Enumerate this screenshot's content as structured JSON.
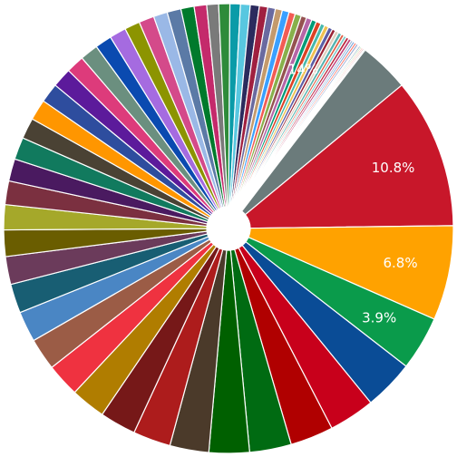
{
  "chart_data": {
    "type": "pie",
    "donut_hole": true,
    "start_angle_deg": 0,
    "direction": "clockwise",
    "slices": [
      {
        "value": 14.0,
        "label": "14%",
        "color": "#6b7b7b"
      },
      {
        "value": 10.8,
        "label": "10.8%",
        "color": "#c8172a"
      },
      {
        "value": 6.8,
        "label": "6.8%",
        "color": "#ffa200"
      },
      {
        "value": 3.9,
        "label": "3.9%",
        "color": "#0a9b4b"
      },
      {
        "value": 3.6,
        "label": "",
        "color": "#0a4c96"
      },
      {
        "value": 3.3,
        "label": "",
        "color": "#c8001b"
      },
      {
        "value": 3.1,
        "label": "",
        "color": "#b00000"
      },
      {
        "value": 3.0,
        "label": "",
        "color": "#006b12"
      },
      {
        "value": 2.9,
        "label": "",
        "color": "#006000"
      },
      {
        "value": 2.8,
        "label": "",
        "color": "#4b3a2a"
      },
      {
        "value": 2.7,
        "label": "",
        "color": "#ad1c1c"
      },
      {
        "value": 2.6,
        "label": "",
        "color": "#761818"
      },
      {
        "value": 2.5,
        "label": "",
        "color": "#b07d00"
      },
      {
        "value": 2.4,
        "label": "",
        "color": "#ef3240"
      },
      {
        "value": 2.3,
        "label": "",
        "color": "#9b5c46"
      },
      {
        "value": 2.2,
        "label": "",
        "color": "#4a86c4"
      },
      {
        "value": 2.1,
        "label": "",
        "color": "#185e73"
      },
      {
        "value": 2.0,
        "label": "",
        "color": "#6b3b5b"
      },
      {
        "value": 1.9,
        "label": "",
        "color": "#6a5d00"
      },
      {
        "value": 1.8,
        "label": "",
        "color": "#a5a82a"
      },
      {
        "value": 1.7,
        "label": "",
        "color": "#7b3040"
      },
      {
        "value": 1.6,
        "label": "",
        "color": "#4a1a60"
      },
      {
        "value": 1.6,
        "label": "",
        "color": "#117a5e"
      },
      {
        "value": 1.5,
        "label": "",
        "color": "#4a4234"
      },
      {
        "value": 1.5,
        "label": "",
        "color": "#ff9600"
      },
      {
        "value": 1.4,
        "label": "",
        "color": "#2e4d9e"
      },
      {
        "value": 1.4,
        "label": "",
        "color": "#5c1a9b"
      },
      {
        "value": 1.3,
        "label": "",
        "color": "#dd3b7b"
      },
      {
        "value": 1.3,
        "label": "",
        "color": "#6b8f7f"
      },
      {
        "value": 1.2,
        "label": "",
        "color": "#0a4ab0"
      },
      {
        "value": 1.2,
        "label": "",
        "color": "#a56be0"
      },
      {
        "value": 1.1,
        "label": "",
        "color": "#8c9400"
      },
      {
        "value": 1.1,
        "label": "",
        "color": "#d44a8a"
      },
      {
        "value": 1.0,
        "label": "",
        "color": "#9ab8e6"
      },
      {
        "value": 1.0,
        "label": "",
        "color": "#5b7aa6"
      },
      {
        "value": 0.95,
        "label": "",
        "color": "#007a2c"
      },
      {
        "value": 0.9,
        "label": "",
        "color": "#c42a6b"
      },
      {
        "value": 0.85,
        "label": "",
        "color": "#7a7a7a"
      },
      {
        "value": 0.8,
        "label": "",
        "color": "#2e8b3a"
      },
      {
        "value": 0.75,
        "label": "",
        "color": "#0a9ba8"
      },
      {
        "value": 0.7,
        "label": "",
        "color": "#58c7e0"
      },
      {
        "value": 0.65,
        "label": "",
        "color": "#2b2b5e"
      },
      {
        "value": 0.6,
        "label": "",
        "color": "#a02040"
      },
      {
        "value": 0.55,
        "label": "",
        "color": "#6a6aa0"
      },
      {
        "value": 0.5,
        "label": "",
        "color": "#c49a6c"
      },
      {
        "value": 0.5,
        "label": "",
        "color": "#3aa0ff"
      },
      {
        "value": 0.45,
        "label": "",
        "color": "#f25c54"
      },
      {
        "value": 0.45,
        "label": "",
        "color": "#88b04b"
      },
      {
        "value": 0.4,
        "label": "",
        "color": "#955251"
      },
      {
        "value": 0.4,
        "label": "",
        "color": "#b565a7"
      },
      {
        "value": 0.35,
        "label": "",
        "color": "#009b77"
      },
      {
        "value": 0.35,
        "label": "",
        "color": "#dd4124"
      },
      {
        "value": 0.3,
        "label": "",
        "color": "#45b8ac"
      },
      {
        "value": 0.3,
        "label": "",
        "color": "#efc050"
      },
      {
        "value": 0.3,
        "label": "",
        "color": "#5b5ea6"
      },
      {
        "value": 0.25,
        "label": "",
        "color": "#9b2335"
      },
      {
        "value": 0.25,
        "label": "",
        "color": "#dfcfbe"
      },
      {
        "value": 0.25,
        "label": "",
        "color": "#55b4b0"
      },
      {
        "value": 0.2,
        "label": "",
        "color": "#e15d44"
      },
      {
        "value": 0.2,
        "label": "",
        "color": "#7fcdcd"
      },
      {
        "value": 0.2,
        "label": "",
        "color": "#bc243c"
      },
      {
        "value": 0.2,
        "label": "",
        "color": "#c3447a"
      },
      {
        "value": 0.15,
        "label": "",
        "color": "#98b4d4"
      },
      {
        "value": 0.15,
        "label": "",
        "color": "#6f9fd8"
      },
      {
        "value": 0.15,
        "label": "",
        "color": "#ff6f61"
      },
      {
        "value": 0.15,
        "label": "",
        "color": "#92a8d1"
      },
      {
        "value": 0.1,
        "label": "",
        "color": "#f7cac9"
      },
      {
        "value": 0.1,
        "label": "",
        "color": "#034f84"
      },
      {
        "value": 0.1,
        "label": "",
        "color": "#79c753"
      },
      {
        "value": 0.1,
        "label": "",
        "color": "#f7786b"
      },
      {
        "value": 0.1,
        "label": "",
        "color": "#c94c4c"
      },
      {
        "value": 0.1,
        "label": "",
        "color": "#deeaee"
      }
    ]
  }
}
